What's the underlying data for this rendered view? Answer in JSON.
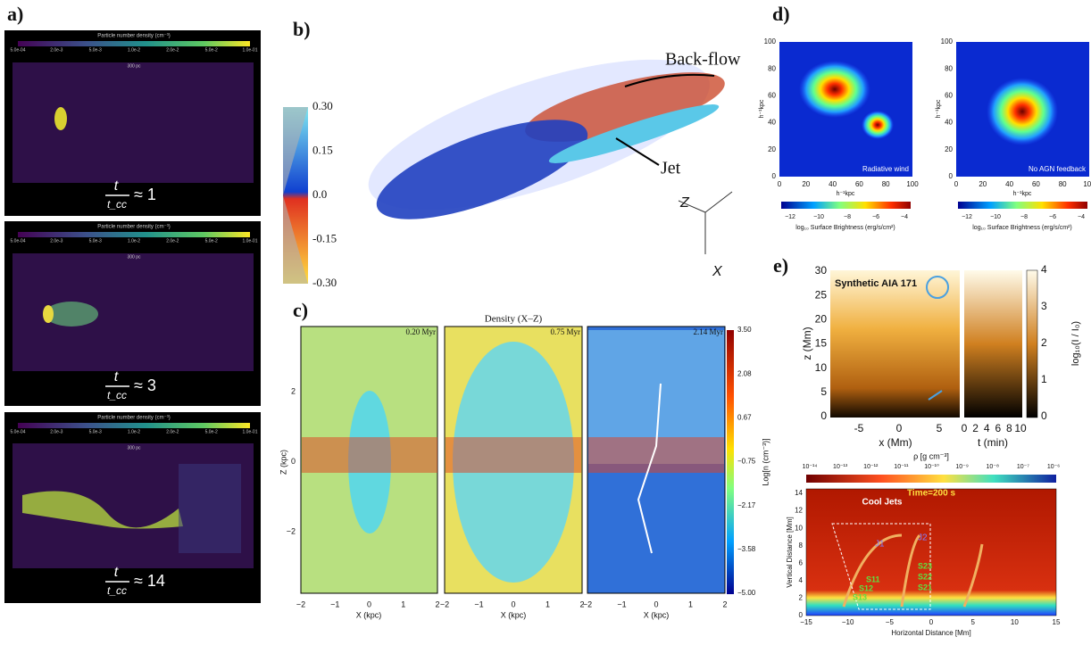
{
  "panel_labels": [
    "a)",
    "b)",
    "c)",
    "d)",
    "e)"
  ],
  "a": {
    "frames": [
      {
        "colorbar_title": "Particle number density (cm⁻³)",
        "scale": "300 pc",
        "t": "t",
        "tcc": "t_cc",
        "approx": "≈ 1"
      },
      {
        "colorbar_title": "Particle number density (cm⁻³)",
        "scale": "300 pc",
        "t": "t",
        "tcc": "t_cc",
        "approx": "≈ 3"
      },
      {
        "colorbar_title": "Particle number density (cm⁻³)",
        "scale": "300 pc",
        "t": "t",
        "tcc": "t_cc",
        "approx": "≈ 14"
      }
    ],
    "colorbar_ticks": [
      "5.0e-04",
      "2.0e-3",
      "5.0e-3",
      "1.0e-2",
      "2.0e-2",
      "5.0e-2",
      "1.0e-01"
    ]
  },
  "b": {
    "colorbar_ticks": [
      "0.30",
      "0.15",
      "0.0",
      "-0.15",
      "-0.30"
    ],
    "backflow": "Back-flow",
    "jet": "Jet",
    "axis_z": "Z",
    "axis_x": "X"
  },
  "c": {
    "title": "Density (X–Z)",
    "times": [
      "0.20 Myr",
      "0.75 Myr",
      "2.14 Myr"
    ],
    "y_label": "Z (kpc)",
    "y_ticks": [
      "2",
      "0",
      "−2"
    ],
    "x_label": "X (kpc)",
    "x_ticks": [
      "−2",
      "−1",
      "0",
      "1",
      "2"
    ],
    "colorbar_label": "Log[n (cm⁻³)]",
    "colorbar_ticks": [
      "3.50",
      "2.08",
      "0.67",
      "−0.75",
      "−2.17",
      "−3.58",
      "−5.00"
    ]
  },
  "d": {
    "maps": [
      "Radiative wind",
      "No AGN feedback"
    ],
    "x_label": "h⁻¹kpc",
    "y_label": "h⁻¹kpc",
    "ticks": [
      "0",
      "20",
      "40",
      "60",
      "80",
      "100"
    ],
    "colorbar_ticks": [
      "−12",
      "−10",
      "−8",
      "−6",
      "−4"
    ],
    "colorbar_label": "log₁₀ Surface Brightness (erg/s/cm²)"
  },
  "e": {
    "top": {
      "title": "Synthetic AIA 171",
      "y_label": "z (Mm)",
      "y_ticks": [
        "0",
        "5",
        "10",
        "15",
        "20",
        "25",
        "30"
      ],
      "x_label": "x (Mm)",
      "x_ticks": [
        "-5",
        "0",
        "5"
      ],
      "t_label": "t (min)",
      "t_ticks": [
        "0",
        "2",
        "4",
        "6",
        "8",
        "10"
      ],
      "colorbar_label": "log₁₀(I / I₀)",
      "colorbar_ticks": [
        "0",
        "1",
        "2",
        "3",
        "4"
      ]
    },
    "bottom": {
      "colorbar_label": "ρ [g cm⁻³]",
      "colorbar_ticks": [
        "10⁻¹⁴",
        "10⁻¹³",
        "10⁻¹²",
        "10⁻¹¹",
        "10⁻¹⁰",
        "10⁻⁹",
        "10⁻⁸",
        "10⁻⁷",
        "10⁻⁶"
      ],
      "time": "Time=200 s",
      "cool_jets": "Cool Jets",
      "j1": "J1",
      "j2": "J2",
      "s_labels": [
        "S13",
        "S12",
        "S11",
        "S23",
        "S22",
        "S21"
      ],
      "y_label": "Vertical Distance [Mm]",
      "y_ticks": [
        "0",
        "2",
        "4",
        "6",
        "8",
        "10",
        "12",
        "14"
      ],
      "x_label": "Horizontal Distance [Mm]",
      "x_ticks": [
        "−15",
        "−10",
        "−5",
        "0",
        "5",
        "10",
        "15"
      ]
    }
  }
}
